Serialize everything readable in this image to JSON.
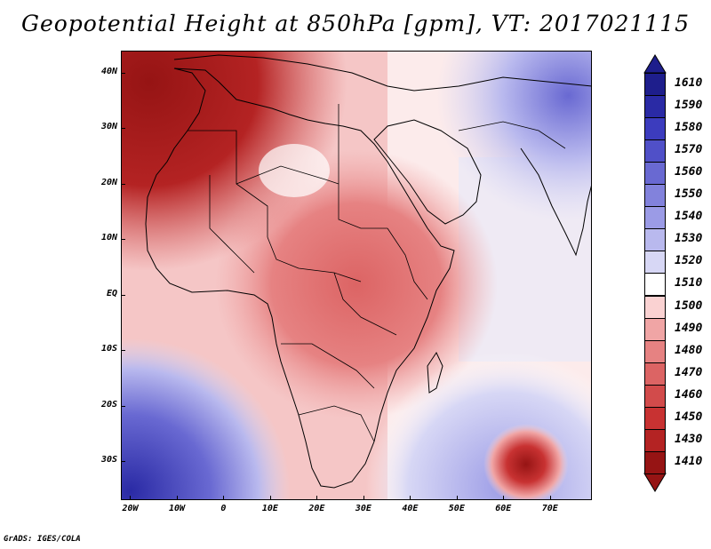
{
  "title": "Geopotential Height at 850hPa [gpm], VT: 2017021115",
  "credit": "GrADS: IGES/COLA",
  "colors": {
    "deep_red": "#9b1c1c",
    "red": "#d94040",
    "light_red": "#f0a8a8",
    "pale": "#fbe6e6",
    "white": "#ffffff",
    "light_blue": "#dcdcf5",
    "blue": "#8c8ce6",
    "deep_blue": "#3232b4"
  },
  "map": {
    "lat_labels": [
      "40N",
      "30N",
      "20N",
      "10N",
      "EQ",
      "10S",
      "20S",
      "30S"
    ],
    "lon_labels": [
      "20W",
      "10W",
      "0",
      "10E",
      "20E",
      "30E",
      "40E",
      "50E",
      "60E",
      "70E"
    ],
    "lat_values": [
      40,
      30,
      20,
      10,
      0,
      -10,
      -20,
      -30
    ],
    "lon_values": [
      -20,
      -10,
      0,
      10,
      20,
      30,
      40,
      50,
      60,
      70
    ],
    "lon_range": [
      -22,
      79
    ],
    "lat_range": [
      -37,
      44
    ]
  },
  "colorbar": {
    "levels": [
      "1610",
      "1590",
      "1580",
      "1570",
      "1560",
      "1550",
      "1540",
      "1530",
      "1520",
      "1510",
      "1500",
      "1490",
      "1480",
      "1470",
      "1460",
      "1450",
      "1430",
      "1410"
    ],
    "colors": [
      "#1e1e8c",
      "#2a2aa5",
      "#3c3cbe",
      "#5050c8",
      "#6969d2",
      "#8282dc",
      "#9b9be6",
      "#b9b9ee",
      "#d7d7f5",
      "#ffffff",
      "#fad2d2",
      "#f0a5a5",
      "#e68282",
      "#dc6464",
      "#d24b4b",
      "#c83232",
      "#b42323",
      "#961414"
    ]
  }
}
